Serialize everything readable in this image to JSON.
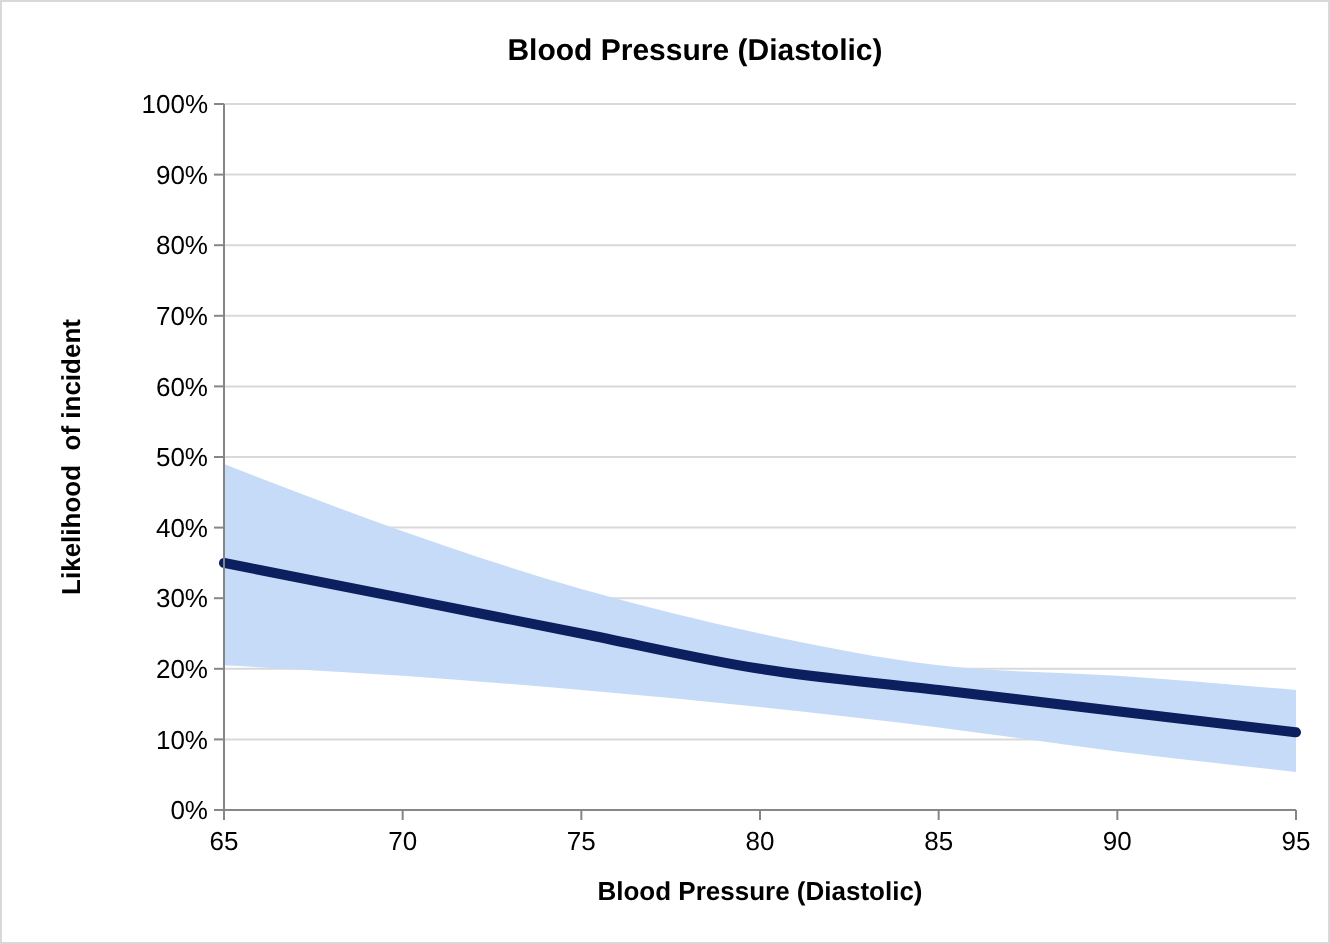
{
  "chart_data": {
    "type": "line",
    "title": "Blood Pressure (Diastolic)",
    "xlabel": "Blood Pressure (Diastolic)",
    "ylabel": "Likelihood  of incident",
    "x": [
      65,
      70,
      75,
      80,
      85,
      90,
      95
    ],
    "series": [
      {
        "color": "#0c1f5e",
        "values": [
          35,
          30,
          25,
          20,
          17,
          14,
          11
        ],
        "lower": [
          20.5,
          19,
          17,
          14.6,
          11.7,
          8.3,
          5.4
        ],
        "upper": [
          49,
          39.5,
          31.3,
          25,
          20.5,
          19,
          17
        ]
      }
    ],
    "xlim": [
      65,
      95
    ],
    "xticks": [
      65,
      70,
      75,
      80,
      85,
      90,
      95
    ],
    "ylim": [
      0,
      100
    ],
    "yticks": [
      {
        "value": 0,
        "label": "0%"
      },
      {
        "value": 10,
        "label": "10%"
      },
      {
        "value": 20,
        "label": "20%"
      },
      {
        "value": 30,
        "label": "30%"
      },
      {
        "value": 40,
        "label": "40%"
      },
      {
        "value": 50,
        "label": "50%"
      },
      {
        "value": 60,
        "label": "60%"
      },
      {
        "value": 70,
        "label": "70%"
      },
      {
        "value": 80,
        "label": "80%"
      },
      {
        "value": 90,
        "label": "90%"
      },
      {
        "value": 100,
        "label": "100%"
      }
    ],
    "grid": "y",
    "marker": "none",
    "line_style": "solid"
  }
}
